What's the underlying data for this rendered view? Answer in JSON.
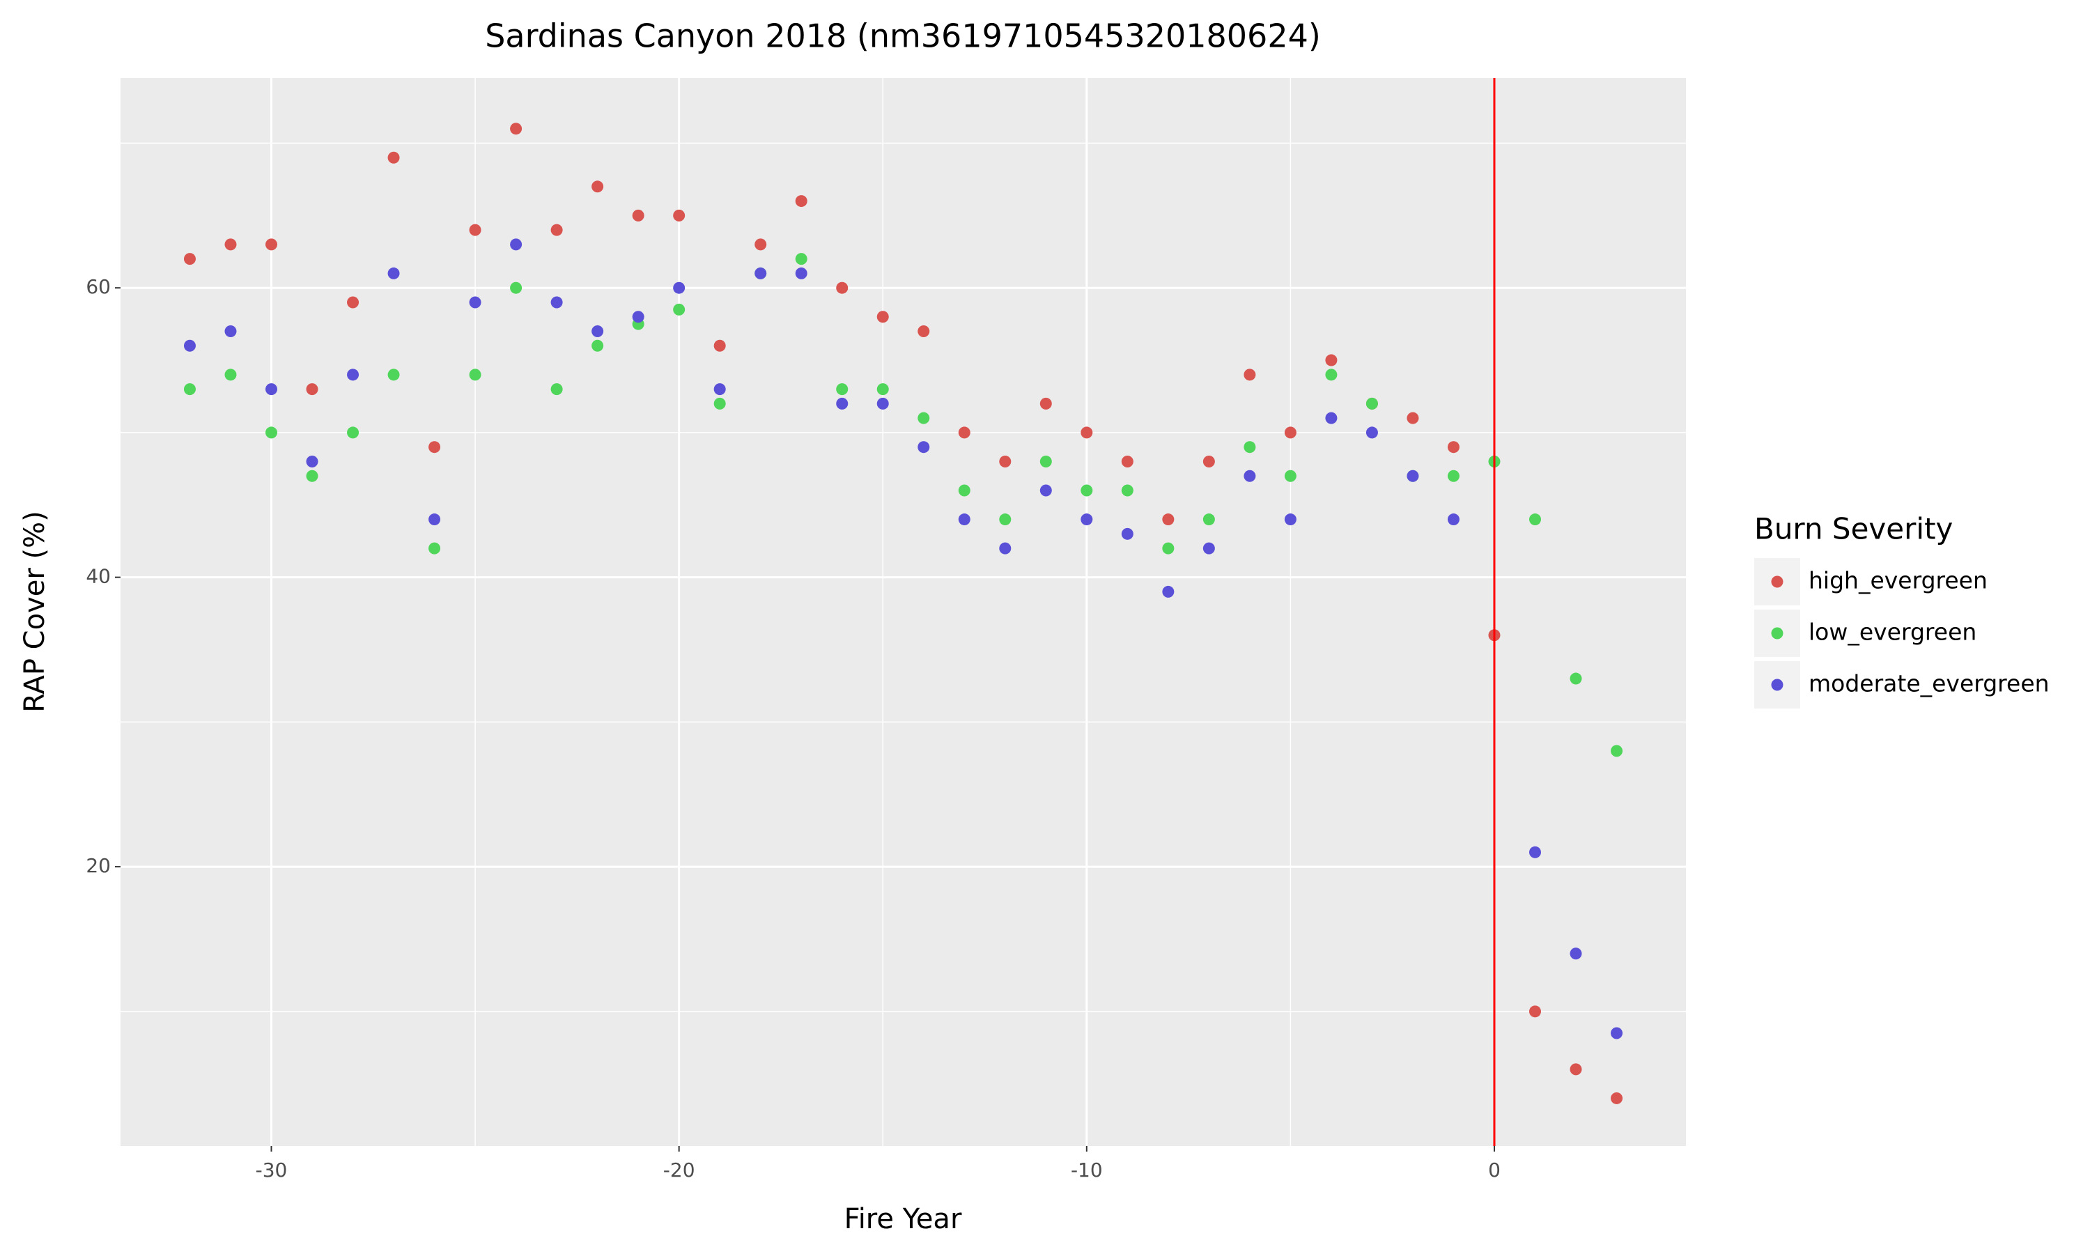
{
  "chart_data": {
    "type": "scatter",
    "title": "Sardinas Canyon 2018 (nm3619710545320180624)",
    "x_label": "Fire Year",
    "y_label": "RAP Cover (%)",
    "legend_title": "Burn Severity",
    "legend_position": "right",
    "x": [
      -32,
      -31,
      -30,
      -29,
      -28,
      -27,
      -26,
      -25,
      -24,
      -23,
      -22,
      -21,
      -20,
      -19,
      -18,
      -17,
      -16,
      -15,
      -14,
      -13,
      -12,
      -11,
      -10,
      -9,
      -8,
      -7,
      -6,
      -5,
      -4,
      -3,
      -2,
      -1,
      0,
      1,
      2,
      3
    ],
    "series": [
      {
        "name": "high_evergreen",
        "color": "#d9534f",
        "values": [
          62,
          63,
          63,
          53,
          59,
          69,
          49,
          64,
          71,
          64,
          67,
          65,
          65,
          56,
          63,
          66,
          60,
          58,
          57,
          50,
          48,
          52,
          50,
          48,
          44,
          48,
          54,
          50,
          55,
          52,
          51,
          49,
          36,
          10,
          6,
          4
        ]
      },
      {
        "name": "low_evergreen",
        "color": "#4fd65a",
        "values": [
          53,
          54,
          50,
          47,
          50,
          54,
          42,
          54,
          60,
          53,
          56,
          57.5,
          58.5,
          52,
          61,
          62,
          53,
          53,
          51,
          46,
          44,
          48,
          46,
          46,
          42,
          44,
          49,
          47,
          54,
          52,
          47,
          47,
          48,
          44,
          33,
          28
        ]
      },
      {
        "name": "moderate_evergreen",
        "color": "#5a50d8",
        "values": [
          56,
          57,
          53,
          48,
          54,
          61,
          44,
          59,
          63,
          59,
          57,
          58,
          60,
          53,
          61,
          61,
          52,
          52,
          49,
          44,
          42,
          46,
          44,
          43,
          39,
          42,
          47,
          44,
          51,
          50,
          47,
          44,
          null,
          21,
          14,
          8.5
        ]
      }
    ],
    "xlim": [
      -33.7,
      4.7
    ],
    "ylim": [
      0.7,
      74.5
    ],
    "xticks": [
      -30,
      -20,
      -10,
      0
    ],
    "yticks": [
      20,
      40,
      60
    ],
    "minor_xticks": [
      -25,
      -15,
      -5
    ],
    "minor_yticks": [
      10,
      30,
      50,
      70
    ],
    "vline": {
      "x": 0,
      "color": "#ff0000"
    },
    "grid": true
  }
}
